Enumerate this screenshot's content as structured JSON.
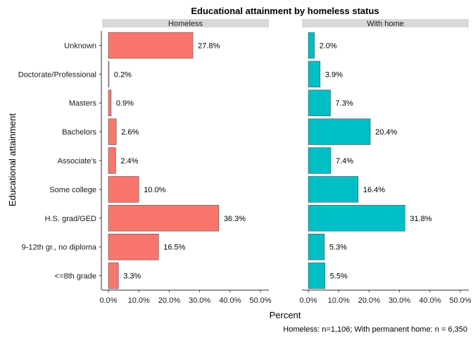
{
  "chart_data": {
    "type": "bar",
    "orientation": "horizontal",
    "title": "Educational attainment by homeless status",
    "xlabel": "Percent",
    "ylabel": "Educational attainment",
    "caption": "Homeless: n=1,106; With permanent home: n = 6,350",
    "categories": [
      "Unknown",
      "Doctorate/Professional",
      "Masters",
      "Bachelors",
      "Associate's",
      "Some college",
      "H.S. grad/GED",
      "9-12th gr., no diploma",
      "<=8th grade"
    ],
    "xlim": [
      0,
      50
    ],
    "xticks": [
      "0.0%",
      "10.0%",
      "20.0%",
      "30.0%",
      "40.0%",
      "50.0%"
    ],
    "grid": false,
    "panels": [
      {
        "name": "Homeless",
        "color": "#F8766D",
        "values": [
          27.8,
          0.2,
          0.9,
          2.6,
          2.4,
          10.0,
          36.3,
          16.5,
          3.3
        ],
        "labels": [
          "27.8%",
          "0.2%",
          "0.9%",
          "2.6%",
          "2.4%",
          "10.0%",
          "36.3%",
          "16.5%",
          "3.3%"
        ]
      },
      {
        "name": "With home",
        "color": "#00BFC4",
        "values": [
          2.0,
          3.9,
          7.3,
          20.4,
          7.4,
          16.4,
          31.8,
          5.3,
          5.5
        ],
        "labels": [
          "2.0%",
          "3.9%",
          "7.3%",
          "20.4%",
          "7.4%",
          "16.4%",
          "31.8%",
          "5.3%",
          "5.5%"
        ]
      }
    ]
  }
}
